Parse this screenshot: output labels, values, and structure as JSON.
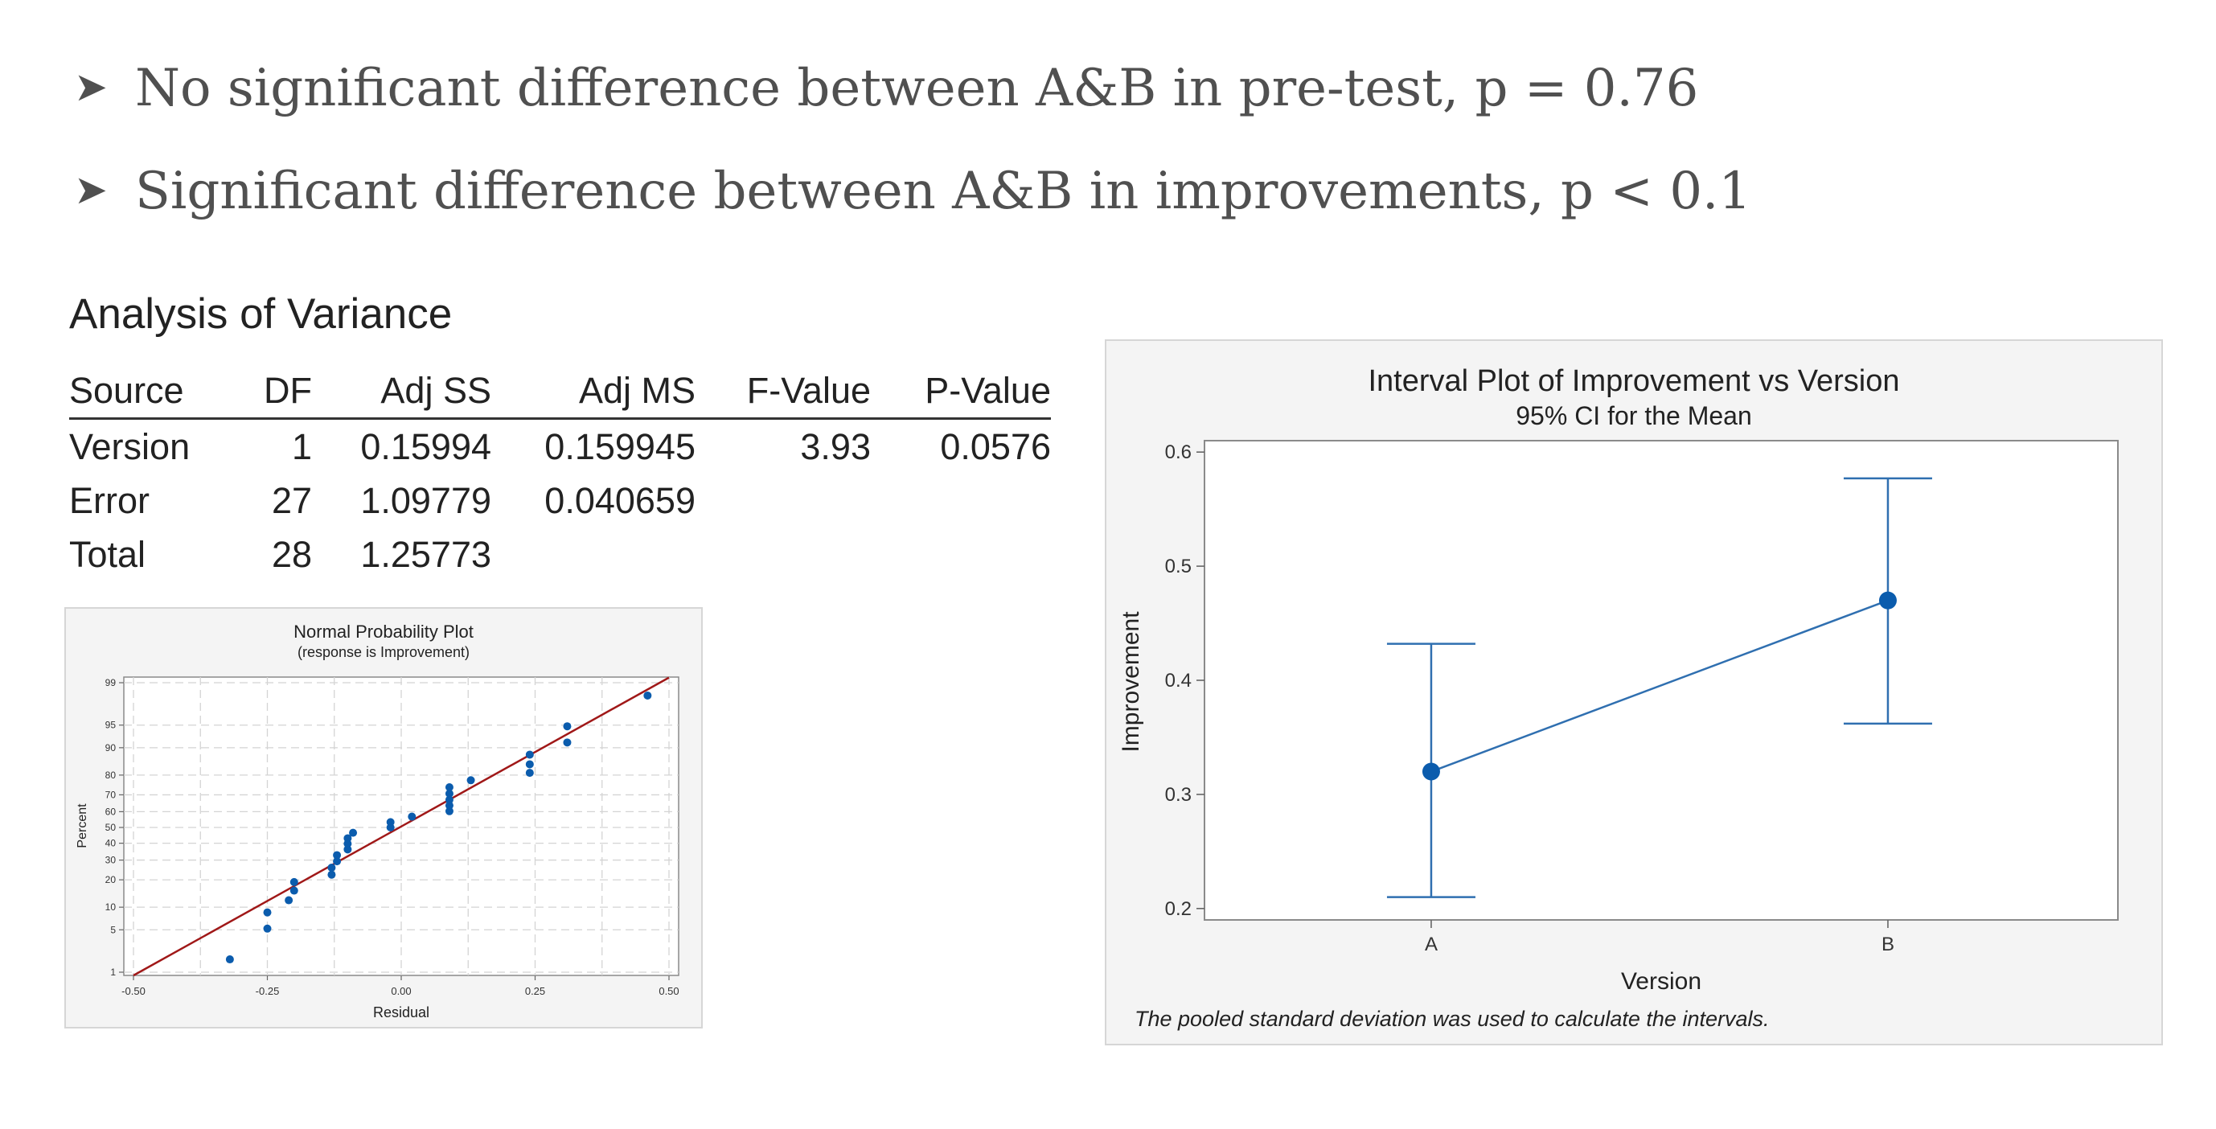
{
  "bullets": [
    {
      "marker": "➤",
      "text": "No significant difference between A&B in pre-test, p = 0.76"
    },
    {
      "marker": "➤",
      "text": "Significant difference between A&B in improvements, p < 0.1"
    }
  ],
  "anova": {
    "title": "Analysis of Variance",
    "columns": [
      "Source",
      "DF",
      "Adj SS",
      "Adj MS",
      "F-Value",
      "P-Value"
    ],
    "rows": [
      [
        "Version",
        "1",
        "0.15994",
        "0.159945",
        "3.93",
        "0.0576"
      ],
      [
        "Error",
        "27",
        "1.09779",
        "0.040659",
        "",
        ""
      ],
      [
        "Total",
        "28",
        "1.25773",
        "",
        "",
        ""
      ]
    ]
  },
  "colors": {
    "point": "#0b5cad",
    "fit_line": "#a01818",
    "interval": "#2f6fb0"
  },
  "chart_data": [
    {
      "type": "scatter",
      "title": "Normal Probability Plot",
      "subtitle": "(response is Improvement)",
      "xlabel": "Residual",
      "ylabel": "Percent",
      "xlim": [
        -0.5,
        0.5
      ],
      "ylim_percent": [
        1,
        99
      ],
      "y_scale": "normal-probability",
      "grid": true,
      "xticks": [
        {
          "v": -0.5,
          "label": "-0.50"
        },
        {
          "v": -0.25,
          "label": "-0.25"
        },
        {
          "v": 0,
          "label": "0.00"
        },
        {
          "v": 0.25,
          "label": "0.25"
        },
        {
          "v": 0.5,
          "label": "0.50"
        }
      ],
      "yticks": [
        1,
        5,
        10,
        20,
        30,
        40,
        50,
        60,
        70,
        80,
        90,
        95,
        99
      ],
      "fit_line": {
        "x": [
          -0.5,
          0.5
        ],
        "percent": [
          0.5,
          99.2
        ]
      },
      "points": [
        {
          "x": -0.32,
          "y": 1.7
        },
        {
          "x": -0.25,
          "y": 5.2
        },
        {
          "x": -0.25,
          "y": 8.6
        },
        {
          "x": -0.21,
          "y": 12.1
        },
        {
          "x": -0.2,
          "y": 15.5
        },
        {
          "x": -0.2,
          "y": 19
        },
        {
          "x": -0.13,
          "y": 22.4
        },
        {
          "x": -0.13,
          "y": 25.9
        },
        {
          "x": -0.12,
          "y": 29.3
        },
        {
          "x": -0.12,
          "y": 32.8
        },
        {
          "x": -0.1,
          "y": 36.2
        },
        {
          "x": -0.1,
          "y": 39.7
        },
        {
          "x": -0.1,
          "y": 43.1
        },
        {
          "x": -0.09,
          "y": 46.6
        },
        {
          "x": -0.02,
          "y": 50
        },
        {
          "x": -0.02,
          "y": 53.4
        },
        {
          "x": 0.02,
          "y": 56.9
        },
        {
          "x": 0.09,
          "y": 60.3
        },
        {
          "x": 0.09,
          "y": 63.8
        },
        {
          "x": 0.09,
          "y": 67.2
        },
        {
          "x": 0.09,
          "y": 70.7
        },
        {
          "x": 0.09,
          "y": 74.1
        },
        {
          "x": 0.13,
          "y": 77.6
        },
        {
          "x": 0.24,
          "y": 81
        },
        {
          "x": 0.24,
          "y": 84.5
        },
        {
          "x": 0.24,
          "y": 87.9
        },
        {
          "x": 0.31,
          "y": 91.4
        },
        {
          "x": 0.31,
          "y": 94.8
        },
        {
          "x": 0.46,
          "y": 98.3
        }
      ]
    },
    {
      "type": "interval",
      "title": "Interval Plot of Improvement vs Version",
      "subtitle": "95% CI for the Mean",
      "xlabel": "Version",
      "ylabel": "Improvement",
      "categories": [
        "A",
        "B"
      ],
      "means": [
        0.32,
        0.47
      ],
      "lower": [
        0.21,
        0.362
      ],
      "upper": [
        0.432,
        0.577
      ],
      "ylim": [
        0.19,
        0.61
      ],
      "yticks": [
        {
          "v": 0.2,
          "label": "0.2"
        },
        {
          "v": 0.3,
          "label": "0.3"
        },
        {
          "v": 0.4,
          "label": "0.4"
        },
        {
          "v": 0.5,
          "label": "0.5"
        },
        {
          "v": 0.6,
          "label": "0.6"
        }
      ],
      "footnote": "The pooled standard deviation was used to calculate the intervals."
    }
  ]
}
